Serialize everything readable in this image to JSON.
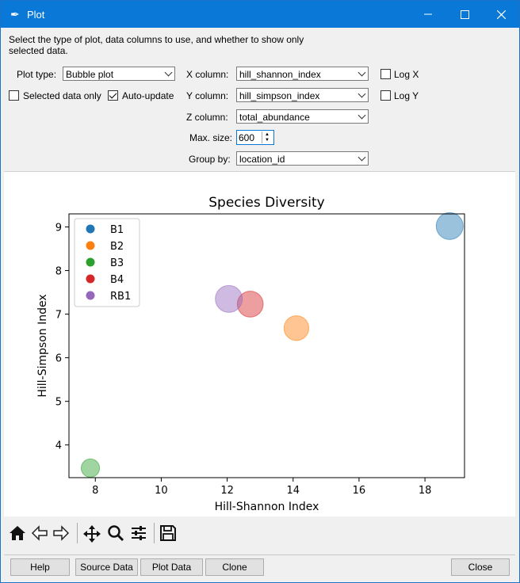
{
  "window": {
    "title": "Plot"
  },
  "description": "Select the type of plot, data columns to use, and whether to show only selected data.",
  "controls": {
    "plot_type_label": "Plot type:",
    "plot_type_value": "Bubble plot",
    "selected_only_label": "Selected data only",
    "selected_only_checked": false,
    "auto_update_label": "Auto-update",
    "auto_update_checked": true,
    "x_column_label": "X column:",
    "x_column_value": "hill_shannon_index",
    "y_column_label": "Y column:",
    "y_column_value": "hill_simpson_index",
    "z_column_label": "Z column:",
    "z_column_value": "total_abundance",
    "max_size_label": "Max. size:",
    "max_size_value": "600",
    "group_by_label": "Group by:",
    "group_by_value": "location_id",
    "log_x_label": "Log X",
    "log_y_label": "Log Y"
  },
  "chart_data": {
    "type": "scatter",
    "title": "Species Diversity",
    "xlabel": "Hill-Shannon Index",
    "ylabel": "Hill-Simpson Index",
    "xlim": [
      7.2,
      19.2
    ],
    "ylim": [
      3.25,
      9.3
    ],
    "xticks": [
      8,
      10,
      12,
      14,
      16,
      18
    ],
    "yticks": [
      4,
      5,
      6,
      7,
      8,
      9
    ],
    "legend_position": "top-left",
    "series": [
      {
        "name": "B1",
        "color": "#1f77b4",
        "points": [
          {
            "x": 18.75,
            "y": 9.02,
            "size": 1.0
          }
        ]
      },
      {
        "name": "B2",
        "color": "#ff7f0e",
        "points": [
          {
            "x": 14.1,
            "y": 6.68,
            "size": 0.92
          }
        ]
      },
      {
        "name": "B3",
        "color": "#2ca02c",
        "points": [
          {
            "x": 7.85,
            "y": 3.47,
            "size": 0.68
          }
        ]
      },
      {
        "name": "B4",
        "color": "#d62728",
        "points": [
          {
            "x": 12.7,
            "y": 7.23,
            "size": 0.96
          }
        ]
      },
      {
        "name": "RB1",
        "color": "#9467bd",
        "points": [
          {
            "x": 12.05,
            "y": 7.35,
            "size": 1.0
          }
        ]
      }
    ]
  },
  "toolbar": {
    "icons": [
      "home-icon",
      "back-icon",
      "forward-icon",
      "pan-icon",
      "zoom-icon",
      "configure-icon",
      "save-icon"
    ]
  },
  "buttons": {
    "help": "Help",
    "source_data": "Source Data",
    "plot_data": "Plot Data",
    "clone": "Clone",
    "close": "Close"
  }
}
